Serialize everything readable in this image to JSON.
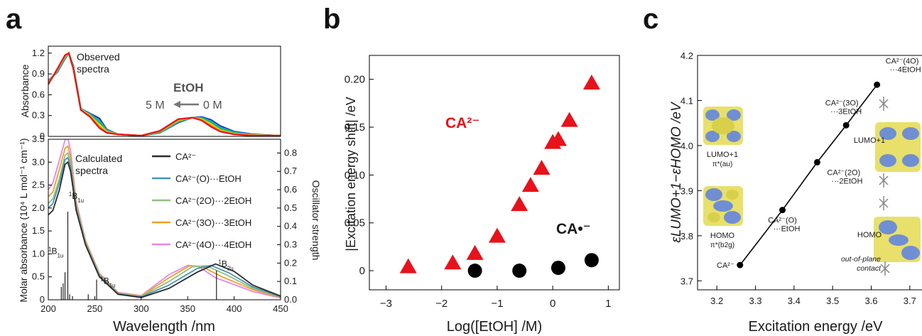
{
  "panels": {
    "a": "a",
    "b": "b",
    "c": "c"
  },
  "colors": {
    "red": "#e8121a",
    "black": "#000000"
  },
  "chart_data": [
    {
      "type": "line",
      "panel": "a-top",
      "xlim": [
        200,
        450
      ],
      "ylim": [
        0,
        1.3
      ],
      "ylabel": "Absorbance",
      "yticks": [
        "0",
        "0.3",
        "0.6",
        "0.9",
        "1.2"
      ],
      "annotation_title": [
        "Observed",
        "spectra"
      ],
      "etoh_label": "EtOH",
      "range_from": "5 M",
      "range_to": "0 M",
      "series": [
        {
          "name": "0 M",
          "color": "#1a2cc8",
          "x": [
            200,
            210,
            218,
            222,
            227,
            235,
            245,
            255,
            263,
            275,
            300,
            320,
            340,
            355,
            365,
            375,
            385,
            400,
            420,
            450
          ],
          "y": [
            0.8,
            0.93,
            1.12,
            1.2,
            1.02,
            0.4,
            0.33,
            0.26,
            0.1,
            0.03,
            0.01,
            0.05,
            0.2,
            0.27,
            0.28,
            0.24,
            0.15,
            0.07,
            0.03,
            0.01
          ]
        },
        {
          "name": "",
          "color": "#16b0c8",
          "x": [
            200,
            210,
            218,
            222,
            227,
            235,
            245,
            255,
            263,
            275,
            300,
            320,
            340,
            355,
            365,
            375,
            385,
            400,
            420,
            450
          ],
          "y": [
            0.79,
            0.94,
            1.13,
            1.2,
            1.01,
            0.4,
            0.32,
            0.23,
            0.09,
            0.03,
            0.01,
            0.05,
            0.21,
            0.27,
            0.27,
            0.22,
            0.13,
            0.06,
            0.02,
            0.01
          ]
        },
        {
          "name": "",
          "color": "#1fbf35",
          "x": [
            200,
            210,
            218,
            222,
            227,
            235,
            245,
            255,
            263,
            275,
            300,
            320,
            340,
            355,
            365,
            375,
            385,
            400,
            420,
            450
          ],
          "y": [
            0.78,
            0.95,
            1.14,
            1.2,
            1.0,
            0.39,
            0.31,
            0.2,
            0.08,
            0.03,
            0.01,
            0.06,
            0.22,
            0.27,
            0.26,
            0.2,
            0.11,
            0.05,
            0.02,
            0.01
          ]
        },
        {
          "name": "",
          "color": "#e8d21c",
          "x": [
            200,
            210,
            218,
            222,
            227,
            235,
            245,
            255,
            263,
            275,
            300,
            320,
            340,
            355,
            365,
            375,
            385,
            400,
            420,
            450
          ],
          "y": [
            0.77,
            0.96,
            1.15,
            1.2,
            0.99,
            0.39,
            0.3,
            0.17,
            0.07,
            0.03,
            0.01,
            0.07,
            0.23,
            0.27,
            0.25,
            0.18,
            0.09,
            0.04,
            0.02,
            0.01
          ]
        },
        {
          "name": "",
          "color": "#f28a1a",
          "x": [
            200,
            210,
            218,
            222,
            227,
            235,
            245,
            255,
            263,
            275,
            300,
            320,
            340,
            355,
            365,
            375,
            385,
            400,
            420,
            450
          ],
          "y": [
            0.76,
            0.97,
            1.16,
            1.2,
            0.98,
            0.38,
            0.29,
            0.14,
            0.06,
            0.03,
            0.01,
            0.07,
            0.24,
            0.27,
            0.24,
            0.16,
            0.08,
            0.03,
            0.01,
            0.01
          ]
        },
        {
          "name": "5 M",
          "color": "#e8121a",
          "x": [
            200,
            210,
            218,
            222,
            227,
            235,
            245,
            255,
            263,
            275,
            300,
            320,
            340,
            355,
            365,
            375,
            385,
            400,
            420,
            450
          ],
          "y": [
            0.75,
            0.98,
            1.17,
            1.2,
            0.97,
            0.38,
            0.28,
            0.12,
            0.05,
            0.03,
            0.01,
            0.08,
            0.25,
            0.27,
            0.23,
            0.14,
            0.07,
            0.03,
            0.01,
            0.01
          ]
        }
      ]
    },
    {
      "type": "line",
      "panel": "a-bottom",
      "xlim": [
        200,
        450
      ],
      "ylim": [
        0,
        3.5
      ],
      "y2lim": [
        0,
        0.875
      ],
      "xlabel": "Wavelength /nm",
      "ylabel": "Molar absorbance (10⁴ L mol⁻¹ cm⁻¹)",
      "y2label": "Oscillator strength",
      "xticks": [
        "200",
        "250",
        "300",
        "350",
        "400",
        "450"
      ],
      "yticks": [
        "0",
        "0.5",
        "1.0",
        "1.5",
        "2.0",
        "2.5",
        "3.0",
        "3.5"
      ],
      "y2ticks": [
        "0.0",
        "0.1",
        "0.2",
        "0.3",
        "0.4",
        "0.5",
        "0.6",
        "0.7",
        "0.8"
      ],
      "annotation_title": [
        "Calculated",
        "spectra"
      ],
      "series": [
        {
          "name": "CA²⁻",
          "color": "#2b2b2b",
          "x": [
            200,
            205,
            212,
            218,
            221,
            224,
            230,
            240,
            255,
            275,
            300,
            330,
            360,
            380,
            400,
            420,
            450
          ],
          "y": [
            1.85,
            1.95,
            2.4,
            2.95,
            3.0,
            2.8,
            1.95,
            1.2,
            0.5,
            0.12,
            0.05,
            0.25,
            0.6,
            0.78,
            0.62,
            0.32,
            0.08
          ]
        },
        {
          "name": "CA²⁻(O)···EtOH",
          "color": "#4a92b6",
          "x": [
            200,
            205,
            212,
            218,
            221,
            224,
            230,
            240,
            255,
            275,
            300,
            330,
            360,
            375,
            395,
            420,
            450
          ],
          "y": [
            2.0,
            2.1,
            2.55,
            3.05,
            3.1,
            2.9,
            2.0,
            1.22,
            0.52,
            0.13,
            0.06,
            0.32,
            0.68,
            0.75,
            0.58,
            0.28,
            0.07
          ]
        },
        {
          "name": "CA²⁻(2O)···2EtOH",
          "color": "#8fbf80",
          "x": [
            200,
            205,
            212,
            218,
            221,
            224,
            230,
            240,
            255,
            275,
            300,
            330,
            355,
            370,
            390,
            420,
            450
          ],
          "y": [
            2.1,
            2.2,
            2.65,
            3.15,
            3.2,
            2.98,
            2.05,
            1.25,
            0.54,
            0.14,
            0.07,
            0.4,
            0.72,
            0.74,
            0.56,
            0.25,
            0.06
          ]
        },
        {
          "name": "CA²⁻(3O)···3EtOH",
          "color": "#f0a020",
          "x": [
            200,
            205,
            212,
            218,
            221,
            224,
            230,
            240,
            255,
            275,
            300,
            330,
            352,
            365,
            385,
            420,
            450
          ],
          "y": [
            2.25,
            2.35,
            2.85,
            3.3,
            3.35,
            3.1,
            2.1,
            1.28,
            0.56,
            0.15,
            0.08,
            0.48,
            0.74,
            0.73,
            0.52,
            0.22,
            0.05
          ]
        },
        {
          "name": "CA²⁻(4O)···4EtOH",
          "color": "#e886e8",
          "x": [
            200,
            205,
            212,
            218,
            221,
            224,
            230,
            240,
            255,
            275,
            300,
            330,
            350,
            362,
            380,
            420,
            450
          ],
          "y": [
            2.4,
            2.55,
            3.05,
            3.48,
            3.52,
            3.25,
            2.15,
            1.3,
            0.58,
            0.16,
            0.09,
            0.55,
            0.75,
            0.72,
            0.48,
            0.18,
            0.04
          ]
        }
      ],
      "stick_spectrum": [
        {
          "x": 214,
          "f": 0.07
        },
        {
          "x": 216,
          "f": 0.09
        },
        {
          "x": 218,
          "f": 0.15
        },
        {
          "x": 221,
          "f": 0.48
        },
        {
          "x": 223,
          "f": 0.03
        },
        {
          "x": 226,
          "f": 0.02
        },
        {
          "x": 243,
          "f": 0.03
        },
        {
          "x": 252,
          "f": 0.11
        },
        {
          "x": 381,
          "f": 0.16
        }
      ],
      "stick_labels": [
        {
          "text": "1B1u",
          "x": 222,
          "y": 2.2
        },
        {
          "text": "1B1u",
          "x": 200,
          "y": 1.0
        },
        {
          "text": "1B1u",
          "x": 256,
          "y": 0.35
        },
        {
          "text": "1B2u",
          "x": 383,
          "y": 0.72
        }
      ]
    },
    {
      "type": "scatter",
      "panel": "b",
      "xlabel": "Log([EtOH] /M)",
      "ylabel": "|Excitation energy shift| /eV",
      "xlim": [
        -3.3,
        1.2
      ],
      "ylim": [
        -0.02,
        0.225
      ],
      "xticks": [
        -3,
        -2,
        -1,
        0,
        1
      ],
      "yticks": [
        0,
        0.05,
        0.1,
        0.15,
        0.2
      ],
      "ytick_labels": [
        "0",
        "0.05",
        "0.10",
        "0.15",
        "0.20"
      ],
      "series": [
        {
          "name": "CA²⁻",
          "marker": "triangle",
          "color": "#e8121a",
          "x": [
            -2.6,
            -1.8,
            -1.4,
            -1.0,
            -0.6,
            -0.4,
            -0.2,
            0.0,
            0.1,
            0.3,
            0.7
          ],
          "y": [
            0.004,
            0.008,
            0.018,
            0.036,
            0.069,
            0.089,
            0.107,
            0.134,
            0.137,
            0.157,
            0.196
          ]
        },
        {
          "name": "CA•⁻",
          "marker": "circle",
          "color": "#000000",
          "x": [
            -1.4,
            -0.6,
            0.1,
            0.7
          ],
          "y": [
            0.0,
            0.0,
            0.003,
            0.011
          ]
        }
      ]
    },
    {
      "type": "line",
      "panel": "c",
      "xlabel": "Excitation energy /eV",
      "ylabel": "εLUMO+1−εHOMO /eV",
      "xlim": [
        3.15,
        3.75
      ],
      "ylim": [
        3.68,
        4.2
      ],
      "xticks": [
        "3.2",
        "3.3",
        "3.4",
        "3.5",
        "3.6",
        "3.7"
      ],
      "yticks": [
        "3.7",
        "3.8",
        "3.9",
        "4.0",
        "4.1",
        "4.2"
      ],
      "series": [
        {
          "name": "",
          "color": "#000000",
          "x": [
            3.26,
            3.37,
            3.46,
            3.535,
            3.615
          ],
          "y": [
            3.735,
            3.857,
            3.963,
            4.045,
            4.135
          ]
        }
      ],
      "point_labels": [
        {
          "lines": [
            "CA²⁻"
          ]
        },
        {
          "lines": [
            "CA²⁻(O)",
            "···EtOH"
          ]
        },
        {
          "lines": [
            "CA²⁻(2O)",
            "···2EtOH"
          ]
        },
        {
          "lines": [
            "CA²⁻(3O)",
            "···3EtOH"
          ]
        },
        {
          "lines": [
            "CA²⁻(4O)",
            "···4EtOH"
          ]
        }
      ],
      "orbital_labels": {
        "lumo": "LUMO+1",
        "lumo_sym": "π*(au)",
        "homo": "HOMO",
        "homo_sym": "π*(b2g)",
        "lumo_right": "LUMO+1",
        "homo_right": "HOMO",
        "contact": [
          "out-of-plane",
          "contact"
        ]
      }
    }
  ]
}
